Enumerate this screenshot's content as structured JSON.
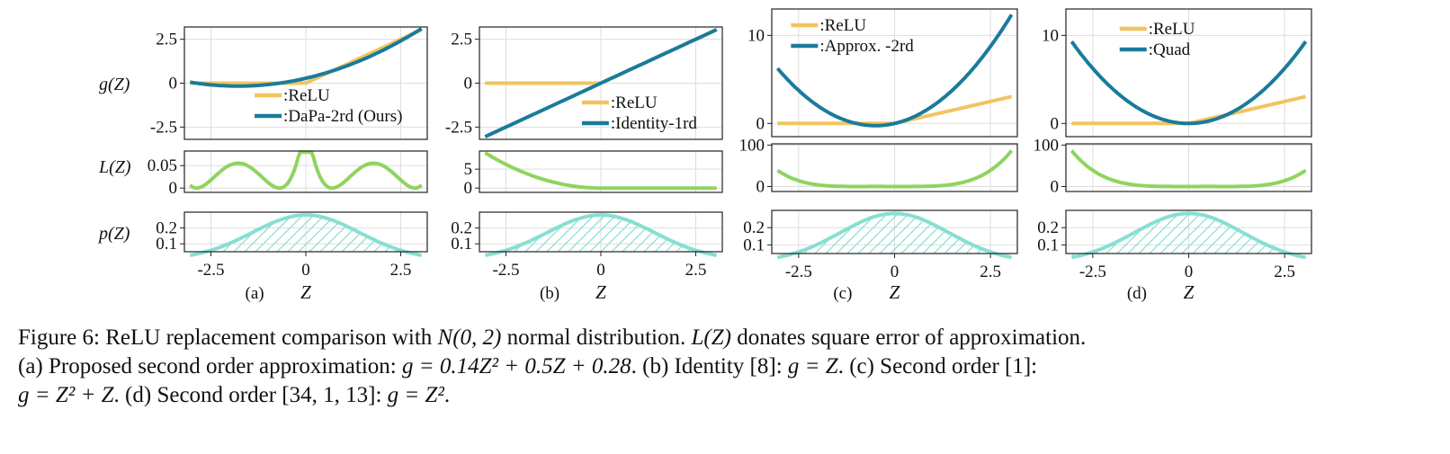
{
  "figure": {
    "row_labels": {
      "g": "g(Z)",
      "L": "L(Z)",
      "p": "p(Z)"
    },
    "colors": {
      "relu": "#f2c45f",
      "approx": "#1a7b9b",
      "loss": "#8fd45e",
      "density": "#86dfd2",
      "grid": "#dddddd",
      "axis": "#222222"
    },
    "panels": [
      {
        "id": "a",
        "sub_label": "(a)",
        "x_label": "Z",
        "legend": [
          ":ReLU",
          ":DaPa-2rd (Ours)"
        ],
        "g_ticks": [
          "2.5",
          "0",
          "-2.5"
        ],
        "L_ticks": [
          "0.05",
          "0"
        ],
        "p_ticks": [
          "0.2",
          "0.1"
        ],
        "x_ticks": [
          "-2.5",
          "0",
          "2.5"
        ]
      },
      {
        "id": "b",
        "sub_label": "(b)",
        "x_label": "Z",
        "legend": [
          ":ReLU",
          ":Identity-1rd"
        ],
        "g_ticks": [
          "2.5",
          "0",
          "-2.5"
        ],
        "L_ticks": [
          "5",
          "0"
        ],
        "p_ticks": [
          "0.2",
          "0.1"
        ],
        "x_ticks": [
          "-2.5",
          "0",
          "2.5"
        ]
      },
      {
        "id": "c",
        "sub_label": "(c)",
        "x_label": "Z",
        "legend": [
          ":ReLU",
          ":Approx. -2rd"
        ],
        "g_ticks": [
          "10",
          "0"
        ],
        "L_ticks": [
          "100",
          "0"
        ],
        "p_ticks": [
          "0.2",
          "0.1"
        ],
        "x_ticks": [
          "-2.5",
          "0",
          "2.5"
        ]
      },
      {
        "id": "d",
        "sub_label": "(d)",
        "x_label": "Z",
        "legend": [
          ":ReLU",
          ":Quad"
        ],
        "g_ticks": [
          "10",
          "0"
        ],
        "L_ticks": [
          "100",
          "0"
        ],
        "p_ticks": [
          "0.2",
          "0.1"
        ],
        "x_ticks": [
          "-2.5",
          "0",
          "2.5"
        ]
      }
    ]
  },
  "caption": {
    "line1_a": "Figure 6: ReLU replacement comparison with ",
    "line1_b": "N(0, 2)",
    "line1_c": " normal distribution. ",
    "line1_d": "L(Z)",
    "line1_e": " donates square error of approximation.",
    "line2_a": "(a) Proposed second order approximation: ",
    "line2_b": "g = 0.14Z² + 0.5Z + 0.28",
    "line2_c": ". (b) Identity [8]: ",
    "line2_d": "g = Z",
    "line2_e": ". (c) Second order [1]:",
    "line3_a": "g = Z² + Z",
    "line3_b": ". (d) Second order [34, 1, 13]: ",
    "line3_c": "g = Z²",
    "line3_d": "."
  },
  "chart_data": [
    {
      "type": "line",
      "panel": "a",
      "ylabel": "g(Z)",
      "xlabel": "Z",
      "xlim": [
        -3.2,
        3.2
      ],
      "ylim": [
        -3.2,
        3.2
      ],
      "series": [
        {
          "name": ":ReLU",
          "formula": "max(0, Z)"
        },
        {
          "name": ":DaPa-2rd (Ours)",
          "formula": "0.14Z^2 + 0.5Z + 0.28"
        }
      ]
    },
    {
      "type": "line",
      "panel": "b",
      "ylabel": "g(Z)",
      "xlabel": "Z",
      "xlim": [
        -3.2,
        3.2
      ],
      "ylim": [
        -3.2,
        3.2
      ],
      "series": [
        {
          "name": ":ReLU",
          "formula": "max(0, Z)"
        },
        {
          "name": ":Identity-1rd",
          "formula": "Z"
        }
      ]
    },
    {
      "type": "line",
      "panel": "c",
      "ylabel": "g(Z)",
      "xlabel": "Z",
      "xlim": [
        -3.2,
        3.2
      ],
      "ylim": [
        -1.5,
        13
      ],
      "series": [
        {
          "name": ":ReLU",
          "formula": "max(0, Z)"
        },
        {
          "name": ":Approx. -2rd",
          "formula": "Z^2 + Z"
        }
      ]
    },
    {
      "type": "line",
      "panel": "d",
      "ylabel": "g(Z)",
      "xlabel": "Z",
      "xlim": [
        -3.2,
        3.2
      ],
      "ylim": [
        -1.5,
        13
      ],
      "series": [
        {
          "name": ":ReLU",
          "formula": "max(0, Z)"
        },
        {
          "name": ":Quad",
          "formula": "Z^2"
        }
      ]
    },
    {
      "type": "area",
      "ylabel": "p(Z)",
      "xlabel": "Z",
      "xlim": [
        -3.2,
        3.2
      ],
      "ylim": [
        0.05,
        0.3
      ],
      "series": [
        {
          "formula": "N(0, 2) density"
        }
      ]
    }
  ]
}
